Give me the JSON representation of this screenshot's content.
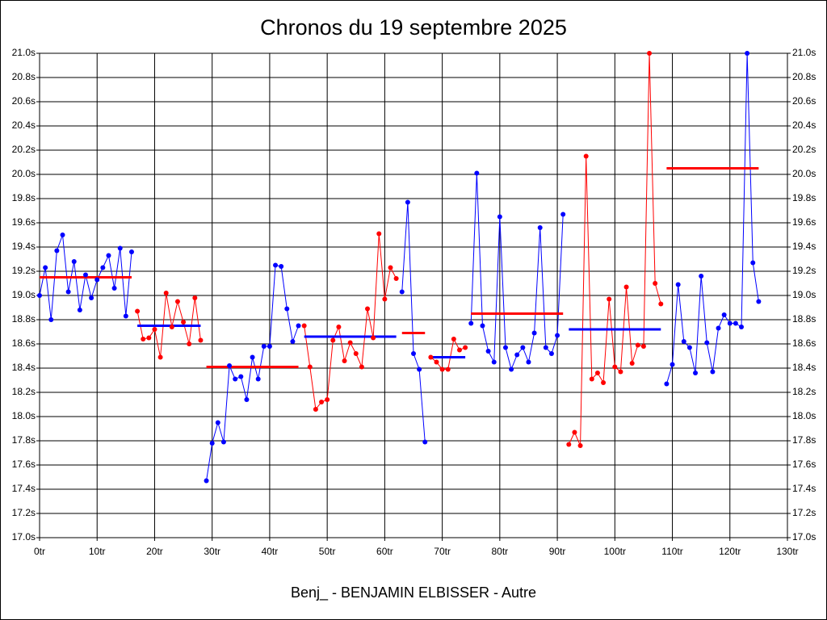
{
  "chart_data": {
    "type": "line",
    "title": "Chronos du 19 septembre 2025",
    "xlabel": "Benj_ - BENJAMIN ELBISSER - Autre",
    "xlim": [
      0,
      130
    ],
    "ylim": [
      17.0,
      21.0
    ],
    "xticks": [
      {
        "value": 0,
        "label": "0tr"
      },
      {
        "value": 10,
        "label": "10tr"
      },
      {
        "value": 20,
        "label": "20tr"
      },
      {
        "value": 30,
        "label": "30tr"
      },
      {
        "value": 40,
        "label": "40tr"
      },
      {
        "value": 50,
        "label": "50tr"
      },
      {
        "value": 60,
        "label": "60tr"
      },
      {
        "value": 70,
        "label": "70tr"
      },
      {
        "value": 80,
        "label": "80tr"
      },
      {
        "value": 90,
        "label": "90tr"
      },
      {
        "value": 100,
        "label": "100tr"
      },
      {
        "value": 110,
        "label": "110tr"
      },
      {
        "value": 120,
        "label": "120tr"
      },
      {
        "value": 130,
        "label": "130tr"
      }
    ],
    "yticks": [
      {
        "value": 17.0,
        "label": "17.0s"
      },
      {
        "value": 17.2,
        "label": "17.2s"
      },
      {
        "value": 17.4,
        "label": "17.4s"
      },
      {
        "value": 17.6,
        "label": "17.6s"
      },
      {
        "value": 17.8,
        "label": "17.8s"
      },
      {
        "value": 18.0,
        "label": "18.0s"
      },
      {
        "value": 18.2,
        "label": "18.2s"
      },
      {
        "value": 18.4,
        "label": "18.4s"
      },
      {
        "value": 18.6,
        "label": "18.6s"
      },
      {
        "value": 18.8,
        "label": "18.8s"
      },
      {
        "value": 19.0,
        "label": "19.0s"
      },
      {
        "value": 19.2,
        "label": "19.2s"
      },
      {
        "value": 19.4,
        "label": "19.4s"
      },
      {
        "value": 19.6,
        "label": "19.6s"
      },
      {
        "value": 19.8,
        "label": "19.8s"
      },
      {
        "value": 20.0,
        "label": "20.0s"
      },
      {
        "value": 20.2,
        "label": "20.2s"
      },
      {
        "value": 20.4,
        "label": "20.4s"
      },
      {
        "value": 20.6,
        "label": "20.6s"
      },
      {
        "value": 20.8,
        "label": "20.8s"
      },
      {
        "value": 21.0,
        "label": "21.0s"
      }
    ],
    "grid": true,
    "series": [
      {
        "color": "#0000ff",
        "average_color": "#ff0000",
        "average": 19.15,
        "x": [
          0,
          1,
          2,
          3,
          4,
          5,
          6,
          7,
          8,
          9,
          10,
          11,
          12,
          13,
          14,
          15,
          16
        ],
        "values": [
          19.0,
          19.23,
          18.8,
          19.37,
          19.5,
          19.03,
          19.28,
          18.88,
          19.17,
          18.98,
          19.13,
          19.23,
          19.33,
          19.06,
          19.39,
          18.83,
          19.36
        ]
      },
      {
        "color": "#ff0000",
        "average_color": "#0000ff",
        "average": 18.75,
        "x": [
          17,
          18,
          19,
          20,
          21,
          22,
          23,
          24,
          25,
          26,
          27,
          28
        ],
        "values": [
          18.87,
          18.64,
          18.65,
          18.72,
          18.49,
          19.02,
          18.74,
          18.95,
          18.78,
          18.6,
          18.98,
          18.63
        ]
      },
      {
        "color": "#0000ff",
        "average_color": "#ff0000",
        "average": 18.41,
        "x": [
          29,
          30,
          31,
          32,
          33,
          34,
          35,
          36,
          37,
          38,
          39,
          40,
          41,
          42,
          43,
          44,
          45
        ],
        "values": [
          17.47,
          17.78,
          17.95,
          17.79,
          18.42,
          18.31,
          18.33,
          18.14,
          18.49,
          18.31,
          18.58,
          18.58,
          19.25,
          19.24,
          18.89,
          18.62,
          18.75
        ]
      },
      {
        "color": "#ff0000",
        "average_color": "#0000ff",
        "average": 18.66,
        "x": [
          46,
          47,
          48,
          49,
          50,
          51,
          52,
          53,
          54,
          55,
          56,
          57,
          58,
          59,
          60,
          61,
          62
        ],
        "values": [
          18.75,
          18.41,
          18.06,
          18.12,
          18.14,
          18.63,
          18.74,
          18.46,
          18.61,
          18.52,
          18.41,
          18.89,
          18.65,
          19.51,
          18.97,
          19.23,
          19.14
        ]
      },
      {
        "color": "#0000ff",
        "average_color": "#ff0000",
        "average": 18.69,
        "x": [
          63,
          64,
          65,
          66,
          67
        ],
        "values": [
          19.03,
          19.77,
          18.52,
          18.39,
          17.79
        ]
      },
      {
        "color": "#ff0000",
        "average_color": "#0000ff",
        "average": 18.49,
        "x": [
          68,
          69,
          70,
          71,
          72,
          73,
          74
        ],
        "values": [
          18.49,
          18.45,
          18.39,
          18.39,
          18.64,
          18.55,
          18.57
        ]
      },
      {
        "color": "#0000ff",
        "average_color": "#ff0000",
        "average": 18.85,
        "x": [
          75,
          76,
          77,
          78,
          79,
          80,
          81,
          82,
          83,
          84,
          85,
          86,
          87,
          88,
          89,
          90,
          91
        ],
        "values": [
          18.77,
          20.01,
          18.75,
          18.54,
          18.45,
          19.65,
          18.57,
          18.39,
          18.51,
          18.57,
          18.45,
          18.69,
          19.56,
          18.57,
          18.52,
          18.67,
          19.67
        ]
      },
      {
        "color": "#ff0000",
        "average_color": "#0000ff",
        "average": 18.72,
        "x": [
          92,
          93,
          94,
          95,
          96,
          97,
          98,
          99,
          100,
          101,
          102,
          103,
          104,
          105,
          106,
          107,
          108
        ],
        "values": [
          17.77,
          17.87,
          17.76,
          20.15,
          18.31,
          18.36,
          18.28,
          18.97,
          18.41,
          18.37,
          19.07,
          18.44,
          18.59,
          18.58,
          21.0,
          19.1,
          18.93
        ]
      },
      {
        "color": "#0000ff",
        "average_color": "#ff0000",
        "average": 20.05,
        "x": [
          109,
          110,
          111,
          112,
          113,
          114,
          115,
          116,
          117,
          118,
          119,
          120,
          121,
          122,
          123,
          124,
          125
        ],
        "values": [
          18.27,
          18.43,
          19.09,
          18.62,
          18.57,
          18.36,
          19.16,
          18.61,
          18.37,
          18.73,
          18.84,
          18.77,
          18.77,
          18.74,
          21.0,
          19.27,
          18.95
        ]
      }
    ]
  }
}
